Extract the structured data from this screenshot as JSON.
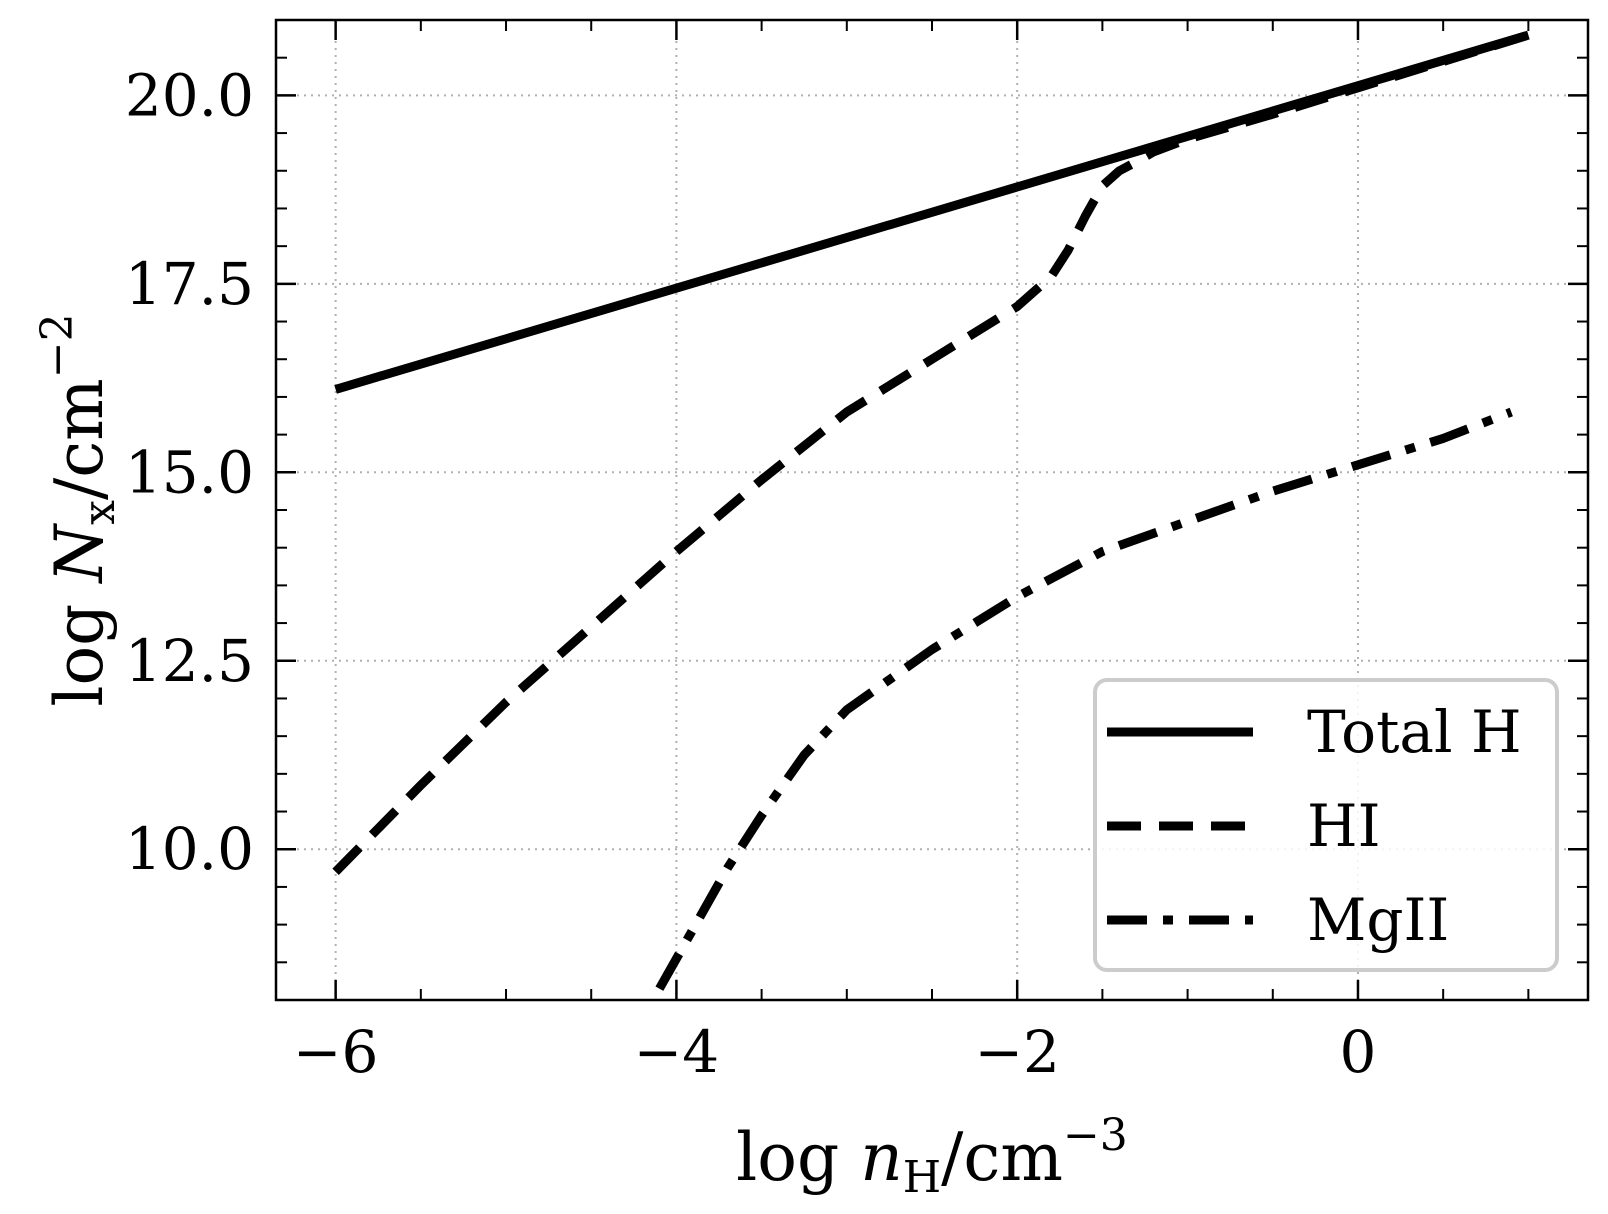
{
  "chart_data": {
    "type": "line",
    "title": "",
    "xlabel": "log nH/cm−3",
    "ylabel": "log Nx/cm−2",
    "xlim": [
      -6.35,
      1.35
    ],
    "ylim": [
      8.0,
      21.0
    ],
    "xticks": [
      -6,
      -4,
      -2,
      0
    ],
    "xtick_labels": [
      "−6",
      "−4",
      "−2",
      "0"
    ],
    "yticks": [
      10.0,
      12.5,
      15.0,
      17.5,
      20.0
    ],
    "ytick_labels": [
      "10.0",
      "12.5",
      "15.0",
      "17.5",
      "20.0"
    ],
    "grid": true,
    "legend_position": "bottom-right",
    "series": [
      {
        "name": "Total H",
        "style": "solid",
        "color": "#000000",
        "x": [
          -6.0,
          1.0
        ],
        "y": [
          16.1,
          20.8
        ]
      },
      {
        "name": "HI",
        "style": "dashed",
        "color": "#000000",
        "x": [
          -6.0,
          -5.5,
          -5.0,
          -4.5,
          -4.0,
          -3.5,
          -3.0,
          -2.5,
          -2.0,
          -1.8,
          -1.7,
          -1.6,
          -1.5,
          -1.4,
          -1.3,
          -1.2,
          -1.0,
          -0.5,
          0.0,
          0.5,
          1.0
        ],
        "y": [
          9.7,
          10.85,
          11.95,
          12.95,
          13.95,
          14.9,
          15.8,
          16.5,
          17.2,
          17.6,
          17.95,
          18.4,
          18.8,
          19.0,
          19.12,
          19.25,
          19.42,
          19.75,
          20.1,
          20.45,
          20.8
        ]
      },
      {
        "name": "MgII",
        "style": "dashdot",
        "color": "#000000",
        "x": [
          -4.1,
          -3.9,
          -3.7,
          -3.5,
          -3.25,
          -3.0,
          -2.5,
          -2.0,
          -1.5,
          -1.0,
          -0.5,
          0.0,
          0.5,
          0.9
        ],
        "y": [
          8.15,
          8.95,
          9.75,
          10.45,
          11.25,
          11.85,
          12.65,
          13.35,
          13.95,
          14.35,
          14.75,
          15.1,
          15.45,
          15.8
        ]
      }
    ]
  }
}
